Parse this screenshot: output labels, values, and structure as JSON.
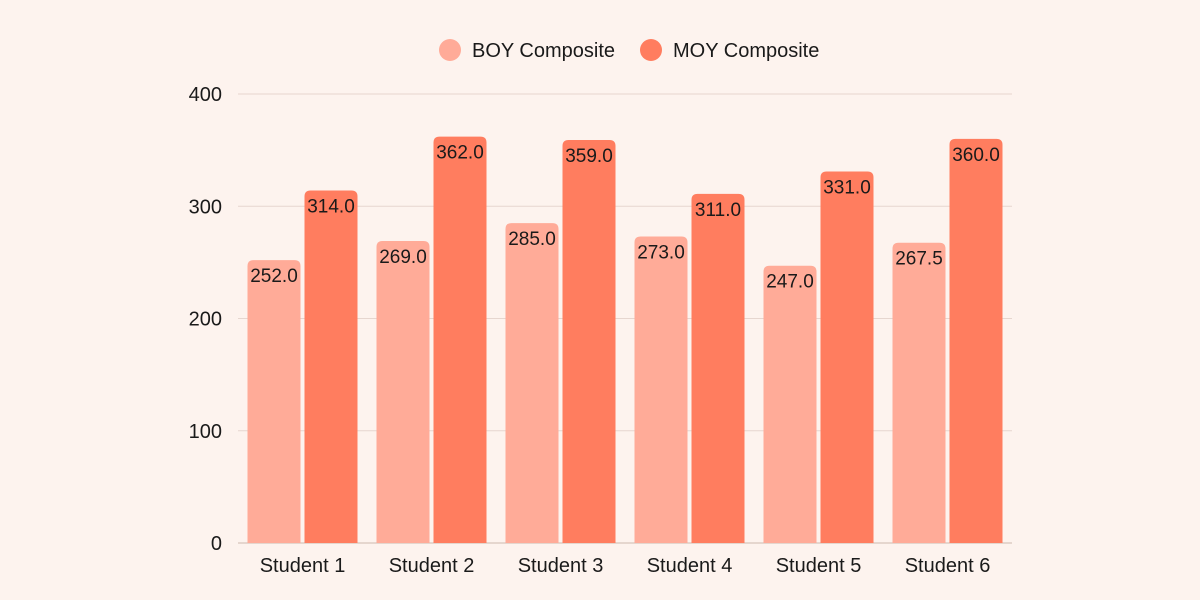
{
  "chart_data": {
    "type": "bar",
    "categories": [
      "Student 1",
      "Student 2",
      "Student 3",
      "Student 4",
      "Student 5",
      "Student 6"
    ],
    "series": [
      {
        "name": "BOY Composite",
        "color": "#ffab98",
        "values": [
          252.0,
          269.0,
          285.0,
          273.0,
          247.0,
          267.5
        ],
        "labels": [
          "252.0",
          "269.0",
          "285.0",
          "273.0",
          "247.0",
          "267.5"
        ]
      },
      {
        "name": "MOY Composite",
        "color": "#ff7d5f",
        "values": [
          314.0,
          362.0,
          359.0,
          311.0,
          331.0,
          360.0
        ],
        "labels": [
          "314.0",
          "362.0",
          "359.0",
          "311.0",
          "331.0",
          "360.0"
        ]
      }
    ],
    "ylim": [
      0,
      400
    ],
    "yticks": [
      "0",
      "100",
      "200",
      "300",
      "400"
    ],
    "grid": true,
    "legend": "top-center",
    "title": "",
    "xlabel": "",
    "ylabel": ""
  }
}
